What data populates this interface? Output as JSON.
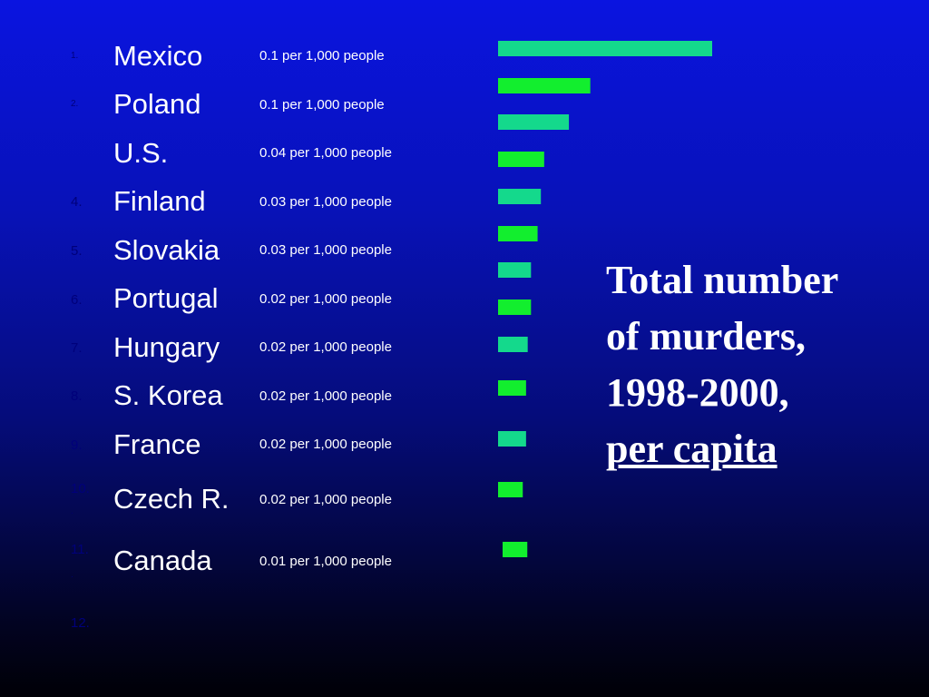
{
  "chart_data": {
    "type": "bar",
    "orientation": "horizontal",
    "title_lines": [
      "Total number",
      "of murders,",
      "1998-2000,",
      "per capita"
    ],
    "rows": [
      {
        "rank": "1.",
        "country": "Mexico",
        "label": "0.1 per 1,000 people",
        "value": 0.13,
        "color": "#14d98c"
      },
      {
        "rank": "2.",
        "country": "Poland",
        "label": "0.1 per 1,000 people",
        "value": 0.056,
        "color": "#12ee2e"
      },
      {
        "rank": "",
        "country": "U.S.",
        "label": "0.04 per 1,000 people",
        "value": 0.043,
        "color": "#14d98c"
      },
      {
        "rank": "4.",
        "country": "Finland",
        "label": "0.03 per 1,000 people",
        "value": 0.028,
        "color": "#12ee2e"
      },
      {
        "rank": "5.",
        "country": "Slovakia",
        "label": "0.03 per 1,000 people",
        "value": 0.026,
        "color": "#14d98c"
      },
      {
        "rank": "6.",
        "country": "Portugal",
        "label": "0.02 per 1,000 people",
        "value": 0.024,
        "color": "#12ee2e"
      },
      {
        "rank": "",
        "country": "",
        "label": "",
        "value": 0.02,
        "color": "#14d98c"
      },
      {
        "rank": "7.",
        "country": "Hungary",
        "label": "0.02 per 1,000 people",
        "value": 0.02,
        "color": "#12ee2e"
      },
      {
        "rank": "",
        "country": "",
        "label": "",
        "value": 0.018,
        "color": "#14d98c"
      },
      {
        "rank": "8.",
        "country": "S. Korea",
        "label": "0.02 per 1,000 people",
        "value": 0.017,
        "color": "#12ee2e"
      },
      {
        "rank": "9.",
        "country": "France",
        "label": "0.02 per 1,000 people",
        "value": 0.017,
        "color": "#14d98c"
      },
      {
        "rank": "10.",
        "country": "Czech R.",
        "label": "0.02 per 1,000 people",
        "value": 0.015,
        "color": "#12ee2e"
      },
      {
        "rank": "11.",
        "country": "Canada",
        "label": "0.01 per 1,000 people",
        "value": 0.015,
        "color": "#12ee2e"
      },
      {
        "rank": "12.",
        "country": "",
        "label": "",
        "value": null,
        "color": ""
      }
    ]
  }
}
